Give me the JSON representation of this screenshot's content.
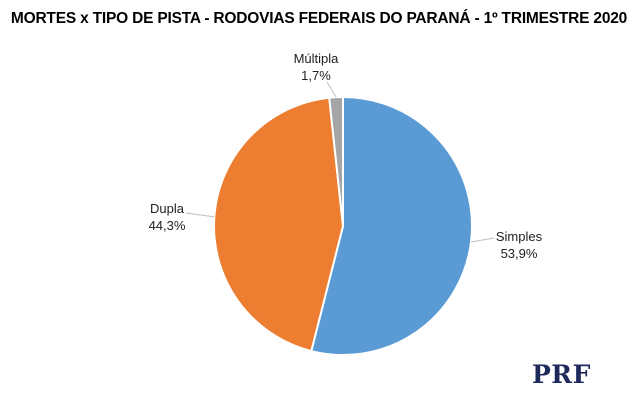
{
  "chart_data": {
    "type": "pie",
    "title": "MORTES x TIPO DE PISTA - RODOVIAS FEDERAIS DO PARANÁ - 1º TRIMESTRE 2020",
    "slices": [
      {
        "label": "Simples",
        "value": 53.9,
        "value_label": "53,9%",
        "color": "#5b9bd5"
      },
      {
        "label": "Dupla",
        "value": 44.3,
        "value_label": "44,3%",
        "color": "#ed7d31"
      },
      {
        "label": "Múltipla",
        "value": 1.7,
        "value_label": "1,7%",
        "color": "#a5a5a5"
      }
    ],
    "start_angle": "12 o'clock, clockwise"
  },
  "logo_text": "PRF"
}
